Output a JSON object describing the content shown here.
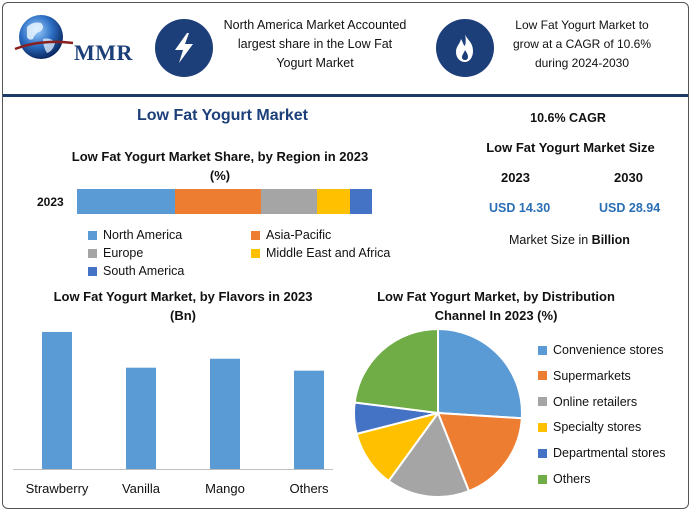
{
  "header": {
    "logo_text": "MMR",
    "left_text": "North America Market Accounted largest share in the Low Fat Yogurt Market",
    "right_text": "Low Fat Yogurt Market to grow at a CAGR of 10.6% during 2024-2030",
    "left_icon": "lightning-icon",
    "right_icon": "flame-icon"
  },
  "main_title": "Low Fat Yogurt Market",
  "colors": {
    "blue": "#5b9bd5",
    "orange": "#ed7d31",
    "gray": "#a5a5a5",
    "yellow": "#ffc000",
    "dark_blue": "#4472c4",
    "green": "#70ad47",
    "navy": "#1c3f7a"
  },
  "market_size": {
    "cagr": "10.6% CAGR",
    "title": "Low Fat Yogurt Market Size",
    "year_start": "2023",
    "year_end": "2030",
    "value_start": "USD 14.30",
    "value_end": "USD 28.94",
    "unit_prefix": "Market Size in ",
    "unit_bold": "Billion"
  },
  "chart_data": [
    {
      "type": "bar",
      "orientation": "horizontal-stacked",
      "title": "Low Fat Yogurt Market Share, by Region in 2023 (%)",
      "categories": [
        "2023"
      ],
      "series": [
        {
          "name": "North America",
          "values": [
            32
          ],
          "color": "#5b9bd5"
        },
        {
          "name": "Asia-Pacific",
          "values": [
            28
          ],
          "color": "#ed7d31"
        },
        {
          "name": "Europe",
          "values": [
            18
          ],
          "color": "#a5a5a5"
        },
        {
          "name": "Middle East and Africa",
          "values": [
            11
          ],
          "color": "#ffc000"
        },
        {
          "name": "South America",
          "values": [
            7
          ],
          "color": "#4472c4"
        }
      ],
      "legend_position": "bottom"
    },
    {
      "type": "bar",
      "title": "Low Fat Yogurt Market, by Flavors in 2023 (Bn)",
      "categories": [
        "Strawberry",
        "Vanilla",
        "Mango",
        "Others"
      ],
      "values": [
        4.6,
        3.4,
        3.7,
        3.3
      ],
      "ylim": [
        0,
        4.9
      ],
      "grid": false,
      "color": "#5b9bd5"
    },
    {
      "type": "pie",
      "title": "Low Fat Yogurt Market, by Distribution Channel In 2023 (%)",
      "categories": [
        "Convenience stores",
        "Supermarkets",
        "Online retailers",
        "Specialty stores",
        "Departmental stores",
        "Others"
      ],
      "values": [
        26,
        18,
        16,
        11,
        6,
        23
      ],
      "colors": [
        "#5b9bd5",
        "#ed7d31",
        "#a5a5a5",
        "#ffc000",
        "#4472c4",
        "#70ad47"
      ],
      "legend_position": "right"
    }
  ]
}
